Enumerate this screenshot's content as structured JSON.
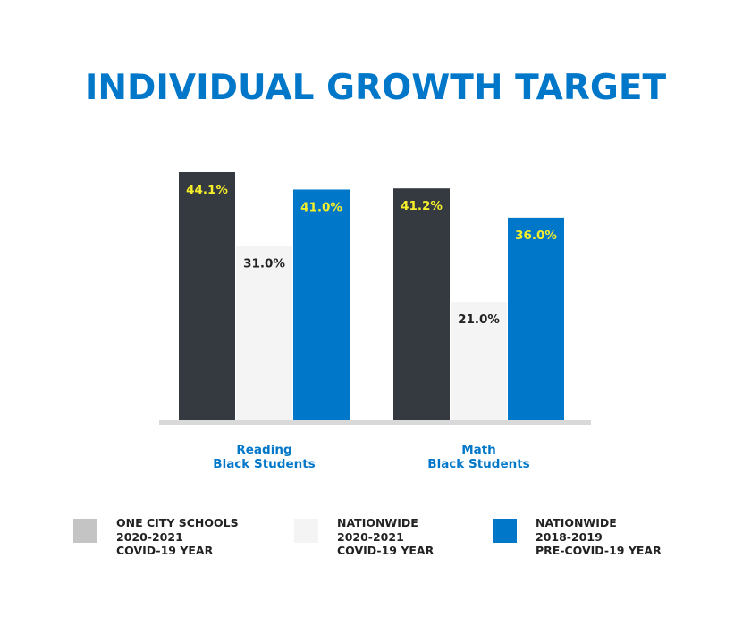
{
  "title": "INDIVIDUAL GROWTH TARGET",
  "chart_data": {
    "type": "bar",
    "categories": [
      [
        "Reading",
        "Black Students"
      ],
      [
        "Math",
        "Black Students"
      ]
    ],
    "series": [
      {
        "values": [
          44.1,
          41.2
        ],
        "labels": [
          "44.1%",
          "41.2%"
        ],
        "color": "#343a40",
        "label_color": "#f5ee2b"
      },
      {
        "values": [
          31.0,
          21.0
        ],
        "labels": [
          "31.0%",
          "21.0%"
        ],
        "color": "#f4f4f4",
        "label_color": "#222222"
      },
      {
        "values": [
          41.0,
          36.0
        ],
        "labels": [
          "41.0%",
          "36.0%"
        ],
        "color": "#0077c8",
        "label_color": "#f5ee2b"
      }
    ],
    "ylim": [
      0,
      44.1
    ],
    "grid": false,
    "legend_position": "bottom"
  },
  "legend": [
    {
      "lines": [
        "ONE CITY SCHOOLS",
        "2020-2021",
        "COVID-19 YEAR"
      ],
      "color": "#c4c4c4"
    },
    {
      "lines": [
        "NATIONWIDE",
        "2020-2021",
        "COVID-19 YEAR"
      ],
      "color": "#f4f4f4"
    },
    {
      "lines": [
        "NATIONWIDE",
        "2018-2019",
        "PRE-COVID-19 YEAR"
      ],
      "color": "#0077c8"
    }
  ],
  "colors": {
    "category_label": "#0077c8",
    "axis_line": "#d9d9d9"
  }
}
